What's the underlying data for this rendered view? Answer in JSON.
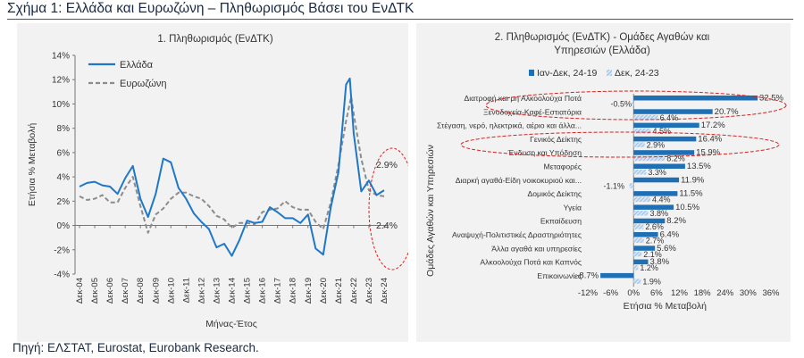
{
  "figure_title": "Σχήμα 1: Ελλάδα και Ευρωζώνη – Πληθωρισμός Βάσει του ΕνΔΤΚ",
  "source": "Πηγή: ΕΛΣΤΑΤ, Eurostat, Eurobank Research.",
  "colors": {
    "greece": "#1f77c8",
    "euro": "#8c8c8c",
    "highlight": "#d62020",
    "bar_main": "#1f6fb5",
    "bar_hatch": "#8ab4e0"
  },
  "chart_data": [
    {
      "type": "line",
      "title": "1. Πληθωρισμός (ΕνΔΤΚ)",
      "xlabel": "Μήνας-Έτος",
      "ylabel": "Ετήσια % Μεταβολή",
      "ylim": [
        -4,
        14
      ],
      "yticks": [
        "-4%",
        "-2%",
        "0%",
        "2%",
        "4%",
        "6%",
        "8%",
        "10%",
        "12%",
        "14%"
      ],
      "x_ticks": [
        "Δεκ-04",
        "Δεκ-05",
        "Δεκ-06",
        "Δεκ-07",
        "Δεκ-08",
        "Δεκ-09",
        "Δεκ-10",
        "Δεκ-11",
        "Δεκ-12",
        "Δεκ-13",
        "Δεκ-14",
        "Δεκ-15",
        "Δεκ-16",
        "Δεκ-17",
        "Δεκ-18",
        "Δεκ-19",
        "Δεκ-20",
        "Δεκ-21",
        "Δεκ-22",
        "Δεκ-23",
        "Δεκ-24"
      ],
      "grid": false,
      "legend_position": "top-left",
      "annotations": [
        "2.9%",
        "2.4%"
      ],
      "series": [
        {
          "name": "Ελλάδα",
          "x": [
            "Δεκ-04",
            "Ιουν-05",
            "Δεκ-05",
            "Ιουν-06",
            "Δεκ-06",
            "Ιουν-07",
            "Δεκ-07",
            "Ιουν-08",
            "Δεκ-08",
            "Ιουν-09",
            "Δεκ-09",
            "Ιουν-10",
            "Δεκ-10",
            "Ιουν-11",
            "Δεκ-11",
            "Ιουν-12",
            "Δεκ-12",
            "Ιουν-13",
            "Δεκ-13",
            "Ιουν-14",
            "Δεκ-14",
            "Ιουν-15",
            "Δεκ-15",
            "Ιουν-16",
            "Δεκ-16",
            "Ιουν-17",
            "Δεκ-17",
            "Ιουν-18",
            "Δεκ-18",
            "Ιουν-19",
            "Δεκ-19",
            "Ιουν-20",
            "Δεκ-20",
            "Ιουν-21",
            "Δεκ-21",
            "Ιουν-22",
            "Σεπ-22",
            "Δεκ-22",
            "Ιουν-23",
            "Δεκ-23",
            "Ιουν-24",
            "Δεκ-24"
          ],
          "values": [
            3.2,
            3.5,
            3.6,
            3.3,
            3.2,
            2.6,
            3.9,
            4.9,
            2.2,
            0.7,
            2.6,
            5.5,
            5.2,
            3.1,
            2.2,
            1.0,
            0.3,
            -0.3,
            -1.8,
            -1.5,
            -2.5,
            -1.2,
            0.4,
            0.2,
            0.3,
            1.5,
            1.1,
            0.6,
            0.6,
            0.2,
            0.9,
            -1.9,
            -2.4,
            1.5,
            4.4,
            11.6,
            12.1,
            7.6,
            2.8,
            3.7,
            2.5,
            2.9
          ]
        },
        {
          "name": "Ευρωζώνη",
          "x": [
            "Δεκ-04",
            "Ιουν-05",
            "Δεκ-05",
            "Ιουν-06",
            "Δεκ-06",
            "Ιουν-07",
            "Δεκ-07",
            "Ιουν-08",
            "Δεκ-08",
            "Ιουν-09",
            "Δεκ-09",
            "Ιουν-10",
            "Δεκ-10",
            "Ιουν-11",
            "Δεκ-11",
            "Ιουν-12",
            "Δεκ-12",
            "Ιουν-13",
            "Δεκ-13",
            "Ιουν-14",
            "Δεκ-14",
            "Ιουν-15",
            "Δεκ-15",
            "Ιουν-16",
            "Δεκ-16",
            "Ιουν-17",
            "Δεκ-17",
            "Ιουν-18",
            "Δεκ-18",
            "Ιουν-19",
            "Δεκ-19",
            "Ιουν-20",
            "Δεκ-20",
            "Ιουν-21",
            "Δεκ-21",
            "Ιουν-22",
            "Οκτ-22",
            "Δεκ-22",
            "Ιουν-23",
            "Δεκ-23",
            "Ιουν-24",
            "Δεκ-24"
          ],
          "values": [
            2.4,
            2.1,
            2.2,
            2.5,
            1.9,
            1.9,
            3.1,
            4.0,
            1.6,
            -0.6,
            0.9,
            1.4,
            2.2,
            2.7,
            2.7,
            2.4,
            2.2,
            1.6,
            0.8,
            0.5,
            -0.2,
            0.2,
            0.2,
            0.1,
            1.1,
            1.3,
            1.4,
            2.0,
            1.5,
            1.3,
            1.3,
            0.3,
            -0.3,
            1.9,
            5.0,
            8.6,
            10.6,
            9.2,
            5.5,
            2.9,
            2.5,
            2.4
          ]
        }
      ]
    },
    {
      "type": "bar",
      "orientation": "horizontal",
      "title": "2. Πληθωρισμός (ΕνΔΤΚ) - Ομάδες Αγαθών και Υπηρεσιών (Ελλάδα)",
      "xlabel": "Ετήσια % Μεταβολή",
      "ylabel": "Ομάδες Αγαθών και Υπηρεσιών",
      "xlim": [
        -12,
        36
      ],
      "xticks": [
        "-12%",
        "-6%",
        "0%",
        "6%",
        "12%",
        "18%",
        "24%",
        "30%",
        "36%"
      ],
      "legend_position": "top",
      "categories": [
        "Διατροφή και μη Αλκοολούχα Ποτά",
        "Ξενοδοχεία-Καφέ-Εστιατόρια",
        "Στέγαση, νερό, ηλεκτρικά, αέριο και άλλα...",
        "Γενικός Δείκτης",
        "Ένδυση και Υπόδηση",
        "Μεταφορές",
        "Διαρκή αγαθά-Είδη νοικοκυριού και...",
        "Δομικός Δείκτης",
        "Υγεία",
        "Εκπαίδευση",
        "Αναψυχή-Πολιτιστικές Δραστηριότητες",
        "Άλλα αγαθά και υπηρεσίες",
        "Αλκοολούχα Ποτά και Καπνός",
        "Επικοινωνίες"
      ],
      "series": [
        {
          "name": "Ιαν-Δεκ, 24-19",
          "style": "solid",
          "values": [
            32.5,
            20.7,
            17.2,
            16.4,
            15.9,
            13.5,
            11.9,
            11.5,
            10.5,
            8.2,
            6.4,
            5.6,
            3.8,
            -8.7
          ],
          "labels": [
            "32.5%",
            "20.7%",
            "17.2%",
            "16.4%",
            "15.9%",
            "13.5%",
            "11.9%",
            "11.5%",
            "10.5%",
            "8.2%",
            "6.4%",
            "5.6%",
            "3.8%",
            "-8.7%"
          ]
        },
        {
          "name": "Δεκ, 24-23",
          "style": "hatched",
          "values": [
            -0.5,
            6.4,
            4.5,
            2.9,
            8.2,
            3.3,
            -1.1,
            4.4,
            3.8,
            2.6,
            2.7,
            2.1,
            1.2,
            1.9
          ],
          "labels": [
            "-0.5%",
            "6.4%",
            "4.5%",
            "2.9%",
            "8.2%",
            "3.3%",
            "-1.1%",
            "4.4%",
            "3.8%",
            "2.6%",
            "2.7%",
            "2.1%",
            "1.2%",
            "1.9%"
          ]
        }
      ]
    }
  ]
}
